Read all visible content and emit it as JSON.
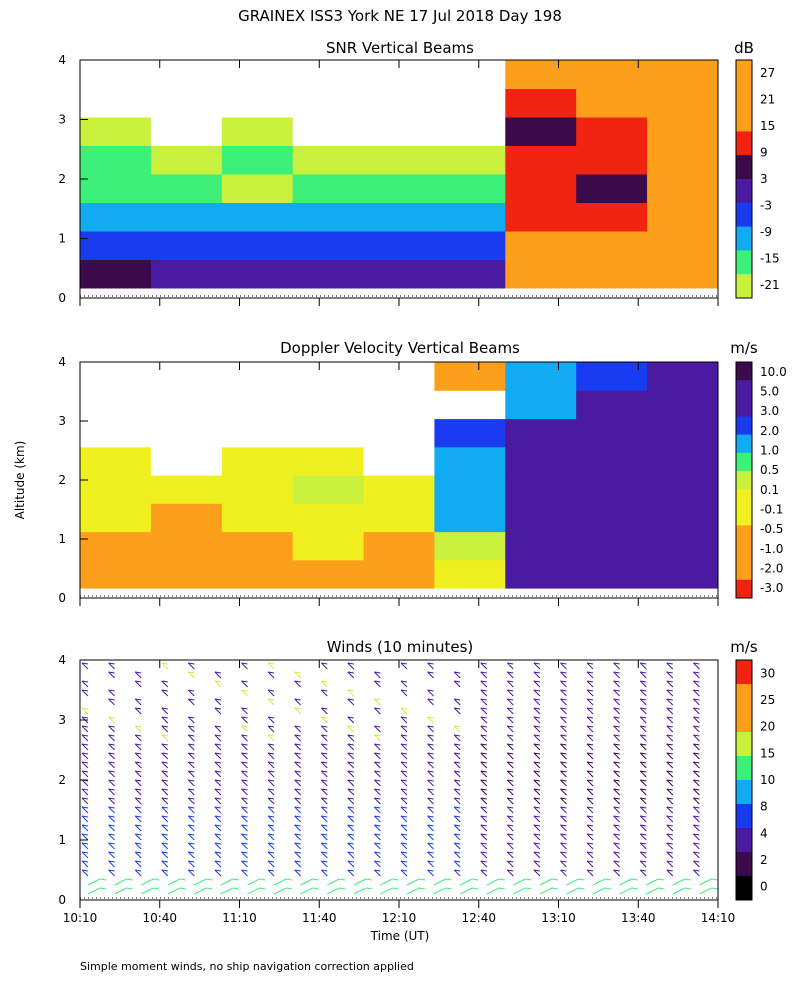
{
  "figure": {
    "title": "GRAINEX ISS3 York NE  17 Jul 2018 Day 198",
    "xlabel": "Time (UT)",
    "ylabel": "Altitude (km)",
    "footnote": "Simple moment winds, no ship navigation correction applied"
  },
  "colors": {
    "missing": "#ffffff",
    "dark_purple": "#3a0a4a",
    "indigo": "#4a1aa0",
    "blue": "#1a3cf0",
    "cyan": "#12aaf0",
    "green": "#3cf07a",
    "lime": "#c8f03c",
    "yellow": "#f0f020",
    "orange": "#fca01c",
    "red": "#f02410"
  },
  "chart_data": [
    {
      "type": "heatmap",
      "title": "SNR Vertical Beams",
      "colorbar_unit": "dB",
      "colorbar_ticks": [
        "27",
        "21",
        "15",
        "9",
        "3",
        "-3",
        "-9",
        "-15",
        "-21"
      ],
      "x_tick_labels": [],
      "y_ticks": [
        "0",
        "1",
        "2",
        "3",
        "4"
      ],
      "xlim": [
        "10:10",
        "14:10"
      ],
      "ylim": [
        0,
        4
      ],
      "columns": [
        {
          "t": "10:10",
          "profile": [
            "dark_purple",
            "blue",
            "cyan",
            "green",
            "green",
            "lime",
            "missing",
            "missing"
          ]
        },
        {
          "t": "10:40",
          "profile": [
            "indigo",
            "blue",
            "cyan",
            "green",
            "lime",
            "missing",
            "missing",
            "missing"
          ]
        },
        {
          "t": "11:10",
          "profile": [
            "indigo",
            "blue",
            "cyan",
            "lime",
            "green",
            "lime",
            "missing",
            "missing"
          ]
        },
        {
          "t": "11:40",
          "profile": [
            "indigo",
            "blue",
            "cyan",
            "green",
            "lime",
            "missing",
            "missing",
            "missing"
          ]
        },
        {
          "t": "12:10",
          "profile": [
            "indigo",
            "blue",
            "cyan",
            "green",
            "lime",
            "missing",
            "missing",
            "missing"
          ]
        },
        {
          "t": "12:40",
          "profile": [
            "indigo",
            "blue",
            "cyan",
            "green",
            "lime",
            "missing",
            "missing",
            "missing"
          ]
        },
        {
          "t": "13:10",
          "profile": [
            "orange",
            "orange",
            "red",
            "red",
            "red",
            "dark_purple",
            "red",
            "orange"
          ]
        },
        {
          "t": "13:40",
          "profile": [
            "orange",
            "orange",
            "red",
            "dark_purple",
            "red",
            "red",
            "orange",
            "orange"
          ]
        },
        {
          "t": "14:10",
          "profile": [
            "orange",
            "orange",
            "orange",
            "orange",
            "orange",
            "orange",
            "orange",
            "orange"
          ]
        }
      ]
    },
    {
      "type": "heatmap",
      "title": "Doppler Velocity Vertical Beams",
      "colorbar_unit": "m/s",
      "colorbar_ticks": [
        "10.0",
        "5.0",
        "3.0",
        "2.0",
        "1.0",
        "0.5",
        "0.1",
        "-0.1",
        "-0.5",
        "-1.0",
        "-2.0",
        "-3.0"
      ],
      "x_tick_labels": [],
      "y_ticks": [
        "0",
        "1",
        "2",
        "3",
        "4"
      ],
      "xlim": [
        "10:10",
        "14:10"
      ],
      "ylim": [
        0,
        4
      ],
      "columns": [
        {
          "t": "10:10",
          "profile": [
            "orange",
            "orange",
            "yellow",
            "yellow",
            "yellow",
            "missing",
            "missing",
            "missing"
          ]
        },
        {
          "t": "10:40",
          "profile": [
            "orange",
            "orange",
            "orange",
            "yellow",
            "missing",
            "missing",
            "missing",
            "missing"
          ]
        },
        {
          "t": "11:10",
          "profile": [
            "orange",
            "orange",
            "yellow",
            "yellow",
            "yellow",
            "missing",
            "missing",
            "missing"
          ]
        },
        {
          "t": "11:40",
          "profile": [
            "orange",
            "yellow",
            "yellow",
            "lime",
            "yellow",
            "missing",
            "missing",
            "missing"
          ]
        },
        {
          "t": "12:10",
          "profile": [
            "orange",
            "orange",
            "yellow",
            "yellow",
            "missing",
            "missing",
            "missing",
            "missing"
          ]
        },
        {
          "t": "12:40",
          "profile": [
            "yellow",
            "lime",
            "cyan",
            "cyan",
            "cyan",
            "blue",
            "missing",
            "orange"
          ]
        },
        {
          "t": "13:10",
          "profile": [
            "indigo",
            "indigo",
            "indigo",
            "indigo",
            "indigo",
            "indigo",
            "cyan",
            "cyan"
          ]
        },
        {
          "t": "13:40",
          "profile": [
            "indigo",
            "indigo",
            "indigo",
            "indigo",
            "indigo",
            "indigo",
            "indigo",
            "blue"
          ]
        },
        {
          "t": "14:10",
          "profile": [
            "indigo",
            "indigo",
            "indigo",
            "indigo",
            "indigo",
            "indigo",
            "indigo",
            "indigo"
          ]
        }
      ]
    },
    {
      "type": "barbs",
      "title": "Winds (10 minutes)",
      "colorbar_unit": "m/s",
      "colorbar_ticks": [
        "30",
        "25",
        "20",
        "15",
        "10",
        "8",
        "4",
        "2",
        "0"
      ],
      "x_tick_labels": [
        "10:10",
        "10:40",
        "11:10",
        "11:40",
        "12:10",
        "12:40",
        "13:10",
        "13:40",
        "14:10"
      ],
      "y_ticks": [
        "0",
        "1",
        "2",
        "3",
        "4"
      ],
      "xlim": [
        "10:10",
        "14:10"
      ],
      "ylim": [
        0,
        4
      ],
      "profiles_every_minutes": 10,
      "approximate_speed_profile_ms": [
        {
          "period": "10:10-12:40",
          "low_levels": 8,
          "mid_levels": 4,
          "upper_levels": 10
        },
        {
          "period": "12:40-14:10",
          "low_levels": 12,
          "mid_levels": 4,
          "upper_levels": 3
        }
      ]
    }
  ]
}
